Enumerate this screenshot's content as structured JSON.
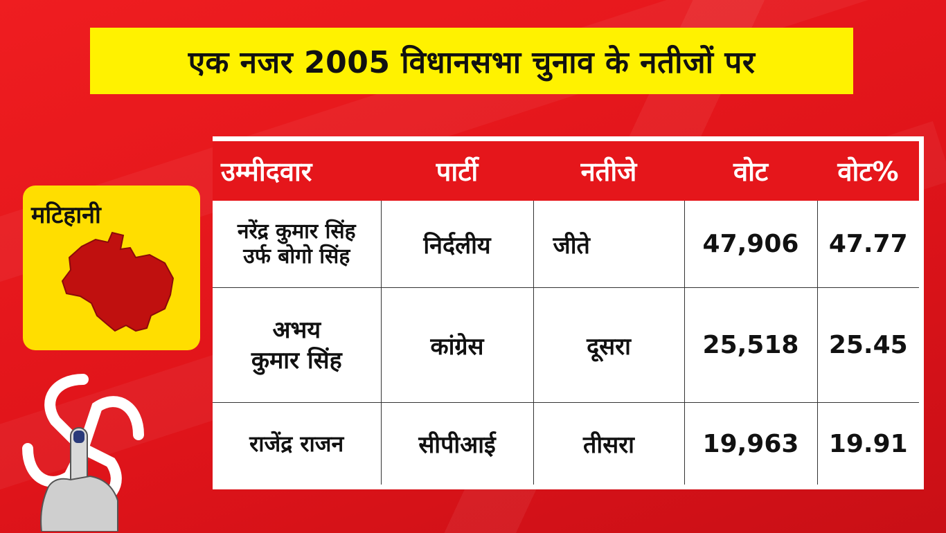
{
  "title": "एक नजर 2005 विधानसभा चुनाव के नतीजों पर",
  "constituency": "मटिहानी",
  "table": {
    "headers": [
      "उम्मीदवार",
      "पार्टी",
      "नतीजे",
      "वोट",
      "वोट%"
    ],
    "rows": [
      {
        "candidate_line1": "नरेंद्र कुमार सिंह",
        "candidate_line2": "उर्फ बोगो सिंह",
        "party": "निर्दलीय",
        "result": "जीते",
        "votes": "47,906",
        "vote_pct": "47.77"
      },
      {
        "candidate_line1": "अभय",
        "candidate_line2": "कुमार सिंह",
        "party": "कांग्रेस",
        "result": "दूसरा",
        "votes": "25,518",
        "vote_pct": "25.45"
      },
      {
        "candidate_line1": "राजेंद्र राजन",
        "candidate_line2": "",
        "party": "सीपीआई",
        "result": "तीसरा",
        "votes": "19,963",
        "vote_pct": "19.91"
      }
    ]
  },
  "colors": {
    "background": "#e5161b",
    "title_bg": "#fff200",
    "card_bg": "#ffde00",
    "map_fill": "#c0100f",
    "header_bg": "#e5161b"
  },
  "icons": [
    "constituency-map-icon",
    "ballot-finger-icon"
  ]
}
